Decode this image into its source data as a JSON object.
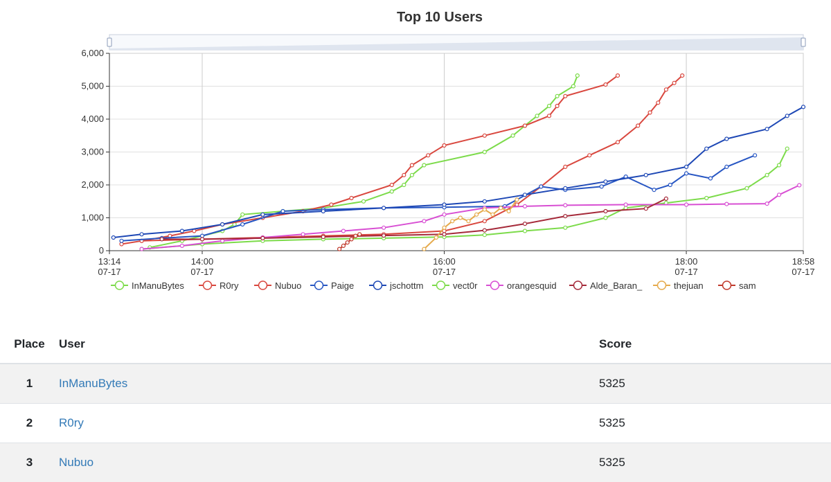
{
  "chart_data": {
    "type": "line",
    "title": "Top 10 Users",
    "x_ticks": [
      {
        "time": "13:14",
        "date": "07-17"
      },
      {
        "time": "14:00",
        "date": "07-17"
      },
      {
        "time": "16:00",
        "date": "07-17"
      },
      {
        "time": "18:00",
        "date": "07-17"
      },
      {
        "time": "18:58",
        "date": "07-17"
      }
    ],
    "xlim": [
      "13:14",
      "18:58"
    ],
    "ylim": [
      0,
      6000
    ],
    "y_ticks": [
      "0",
      "1,000",
      "2,000",
      "3,000",
      "4,000",
      "5,000",
      "6,000"
    ],
    "grid": true,
    "legend_position": "bottom",
    "series": [
      {
        "name": "InManuBytes",
        "color": "#7cdb4a",
        "x": [
          "13:34",
          "13:50",
          "14:10",
          "14:16",
          "14:20",
          "14:40",
          "15:00",
          "15:20",
          "15:34",
          "15:40",
          "15:44",
          "15:50",
          "16:20",
          "16:34",
          "16:40",
          "16:46",
          "16:52",
          "16:56",
          "17:04",
          "17:06"
        ],
        "y": [
          100,
          300,
          600,
          800,
          1100,
          1200,
          1300,
          1500,
          1800,
          2000,
          2300,
          2600,
          3000,
          3500,
          3800,
          4100,
          4400,
          4700,
          5000,
          5325
        ]
      },
      {
        "name": "R0ry",
        "color": "#d9473e",
        "x": [
          "13:20",
          "13:30",
          "13:44",
          "13:56",
          "14:10",
          "14:30",
          "14:50",
          "15:04",
          "15:14",
          "15:34",
          "15:40",
          "15:44",
          "15:52",
          "16:00",
          "16:20",
          "16:40",
          "16:52",
          "16:56",
          "17:00",
          "17:20",
          "17:26"
        ],
        "y": [
          200,
          300,
          450,
          600,
          800,
          1000,
          1200,
          1400,
          1600,
          2000,
          2300,
          2600,
          2900,
          3200,
          3500,
          3800,
          4100,
          4400,
          4700,
          5050,
          5325
        ]
      },
      {
        "name": "Nubuo",
        "color": "#d9473e",
        "x": [
          "13:30",
          "14:00",
          "14:30",
          "15:00",
          "15:30",
          "16:00",
          "16:20",
          "16:36",
          "16:48",
          "17:00",
          "17:12",
          "17:26",
          "17:36",
          "17:42",
          "17:46",
          "17:50",
          "17:54",
          "17:58"
        ],
        "y": [
          300,
          350,
          400,
          450,
          500,
          600,
          900,
          1400,
          1950,
          2550,
          2900,
          3300,
          3800,
          4200,
          4500,
          4900,
          5100,
          5325
        ]
      },
      {
        "name": "Paige",
        "color": "#2756c3",
        "x": [
          "13:20",
          "13:40",
          "14:00",
          "14:20",
          "14:40",
          "15:00",
          "15:30",
          "16:00",
          "16:30",
          "16:48",
          "17:00",
          "17:18",
          "17:30",
          "17:44",
          "17:52",
          "18:00",
          "18:12",
          "18:20",
          "18:34"
        ],
        "y": [
          300,
          380,
          450,
          800,
          1200,
          1250,
          1300,
          1320,
          1350,
          1950,
          1850,
          1950,
          2250,
          1850,
          2000,
          2350,
          2200,
          2550,
          2900
        ]
      },
      {
        "name": "jschottm",
        "color": "#1e48b5",
        "x": [
          "13:16",
          "13:30",
          "13:50",
          "14:10",
          "14:30",
          "15:00",
          "15:30",
          "16:00",
          "16:20",
          "16:40",
          "17:00",
          "17:20",
          "17:40",
          "18:00",
          "18:10",
          "18:20",
          "18:40",
          "18:50",
          "18:58"
        ],
        "y": [
          400,
          500,
          600,
          800,
          1100,
          1200,
          1300,
          1400,
          1500,
          1700,
          1900,
          2100,
          2300,
          2550,
          3100,
          3400,
          3700,
          4100,
          4370
        ]
      },
      {
        "name": "vect0r",
        "color": "#7cdb4a",
        "x": [
          "13:30",
          "14:00",
          "14:30",
          "15:00",
          "15:30",
          "16:00",
          "16:20",
          "16:40",
          "17:00",
          "17:20",
          "17:30",
          "17:50",
          "18:10",
          "18:30",
          "18:40",
          "18:46",
          "18:50"
        ],
        "y": [
          50,
          200,
          300,
          350,
          380,
          420,
          480,
          600,
          700,
          1000,
          1300,
          1450,
          1600,
          1900,
          2300,
          2600,
          3100
        ]
      },
      {
        "name": "orangesquid",
        "color": "#d84fd3",
        "x": [
          "13:30",
          "13:50",
          "14:10",
          "14:30",
          "14:50",
          "15:10",
          "15:30",
          "15:50",
          "16:00",
          "16:20",
          "16:40",
          "17:00",
          "17:30",
          "18:00",
          "18:20",
          "18:40",
          "18:46",
          "18:56"
        ],
        "y": [
          50,
          150,
          300,
          400,
          500,
          600,
          700,
          900,
          1100,
          1300,
          1350,
          1380,
          1400,
          1400,
          1420,
          1430,
          1700,
          1990
        ]
      },
      {
        "name": "Alde_Baran_",
        "color": "#a52a3a",
        "x": [
          "13:40",
          "14:00",
          "14:30",
          "15:00",
          "15:30",
          "16:00",
          "16:20",
          "16:40",
          "17:00",
          "17:20",
          "17:40",
          "17:50"
        ],
        "y": [
          350,
          350,
          380,
          420,
          460,
          500,
          620,
          820,
          1050,
          1200,
          1280,
          1580
        ]
      },
      {
        "name": "thejuan",
        "color": "#e5aa4c",
        "x": [
          "15:50",
          "15:56",
          "16:00",
          "16:04",
          "16:08",
          "16:12",
          "16:16",
          "16:20",
          "16:24",
          "16:28",
          "16:32",
          "16:36"
        ],
        "y": [
          50,
          400,
          700,
          900,
          1000,
          900,
          1100,
          1250,
          1100,
          1300,
          1200,
          1550
        ]
      },
      {
        "name": "sam",
        "color": "#c0392b",
        "x": [
          "15:08",
          "15:10",
          "15:12",
          "15:14",
          "15:16",
          "15:18"
        ],
        "y": [
          50,
          150,
          250,
          350,
          450,
          500
        ]
      }
    ]
  },
  "table": {
    "headers": {
      "place": "Place",
      "user": "User",
      "score": "Score"
    },
    "rows": [
      {
        "place": "1",
        "user": "InManuBytes",
        "score": "5325"
      },
      {
        "place": "2",
        "user": "R0ry",
        "score": "5325"
      },
      {
        "place": "3",
        "user": "Nubuo",
        "score": "5325"
      }
    ]
  }
}
